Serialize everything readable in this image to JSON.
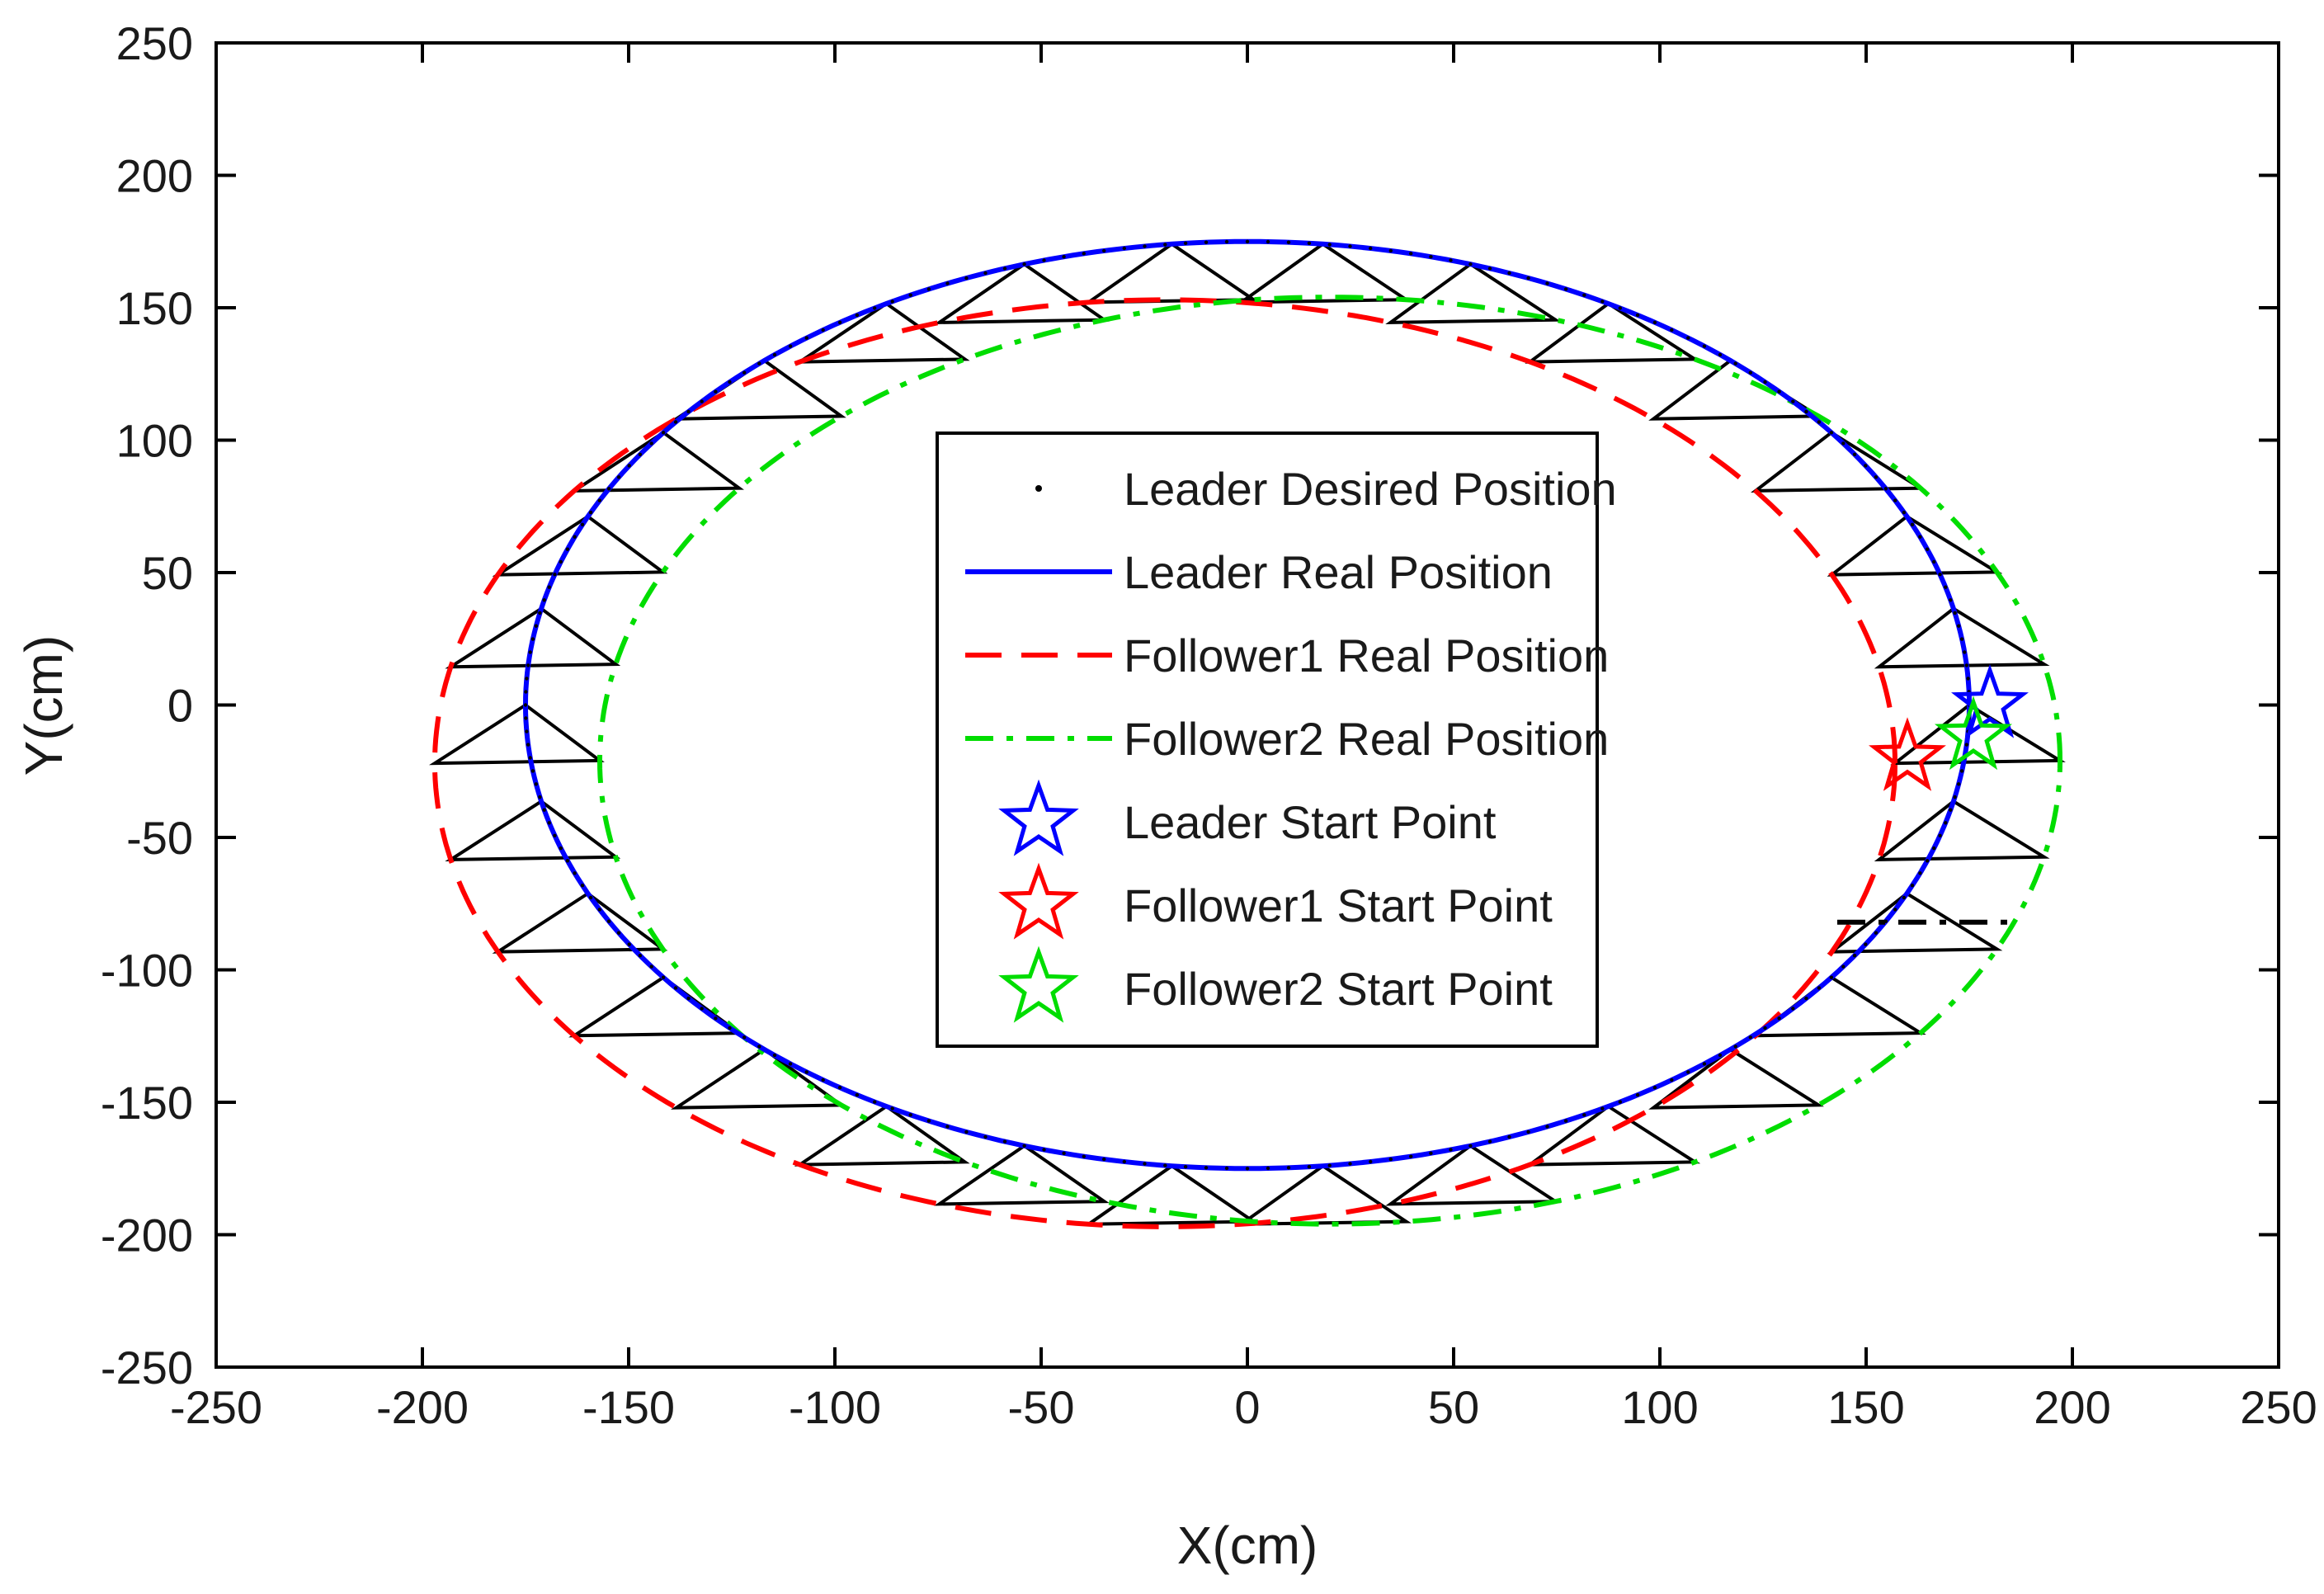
{
  "chart_data": {
    "type": "line",
    "xlabel": "X(cm)",
    "ylabel": "Y(cm)",
    "xlim": [
      -250,
      250
    ],
    "ylim": [
      -250,
      250
    ],
    "xticks": [
      -250,
      -200,
      -150,
      -100,
      -50,
      0,
      50,
      100,
      150,
      200,
      250
    ],
    "yticks": [
      -250,
      -200,
      -150,
      -100,
      -50,
      0,
      50,
      100,
      150,
      200,
      250
    ],
    "xtick_labels": [
      "-250",
      "-200",
      "-150",
      "-100",
      "-50",
      "0",
      "50",
      "100",
      "150",
      "200",
      "250"
    ],
    "ytick_labels": [
      "-250",
      "-200",
      "-150",
      "-100",
      "-50",
      "0",
      "50",
      "100",
      "150",
      "200",
      "250"
    ],
    "grid": false,
    "legend_position": "center",
    "series": [
      {
        "name": "Leader Desired Position",
        "style": "dots",
        "color": "#000000",
        "shape": "ellipse",
        "center": [
          0,
          0
        ],
        "rx": 175,
        "ry": 175
      },
      {
        "name": "Leader Real Position",
        "style": "solid",
        "color": "#0000ff",
        "shape": "ellipse",
        "center": [
          0,
          0
        ],
        "rx": 175,
        "ry": 175
      },
      {
        "name": "Follower1 Real Position",
        "style": "dashed",
        "color": "#ff0000",
        "shape": "ellipse",
        "center": [
          -20,
          -22
        ],
        "rx": 177,
        "ry": 175
      },
      {
        "name": "Follower2 Real Position",
        "style": "dashdot",
        "color": "#00dd00",
        "shape": "ellipse",
        "center": [
          20,
          -21
        ],
        "rx": 177,
        "ry": 175
      },
      {
        "name": "Leader Start Point",
        "style": "star",
        "color": "#0000ff",
        "x": 180,
        "y": 0
      },
      {
        "name": "Follower1 Start Point",
        "style": "star",
        "color": "#ff0000",
        "x": 160,
        "y": -20
      },
      {
        "name": "Follower2 Start Point",
        "style": "star",
        "color": "#00dd00",
        "x": 176,
        "y": -12
      }
    ],
    "formation": {
      "color": "#000000",
      "count": 30,
      "phase_start_deg": 0
    },
    "annotation_segment": {
      "color": "#000000",
      "style": "dashdot",
      "x": [
        143,
        186
      ],
      "y": [
        -82,
        -82
      ]
    }
  }
}
